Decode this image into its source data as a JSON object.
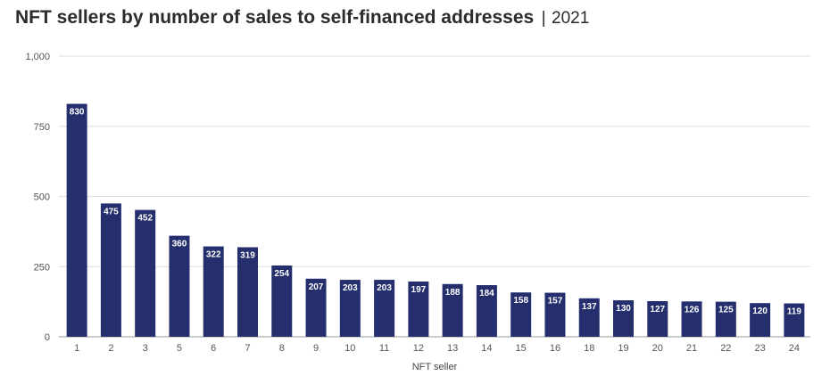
{
  "header": {
    "title": "NFT sellers by number of sales to self-financed addresses",
    "separator": "|",
    "year": "2021"
  },
  "chart_data": {
    "type": "bar",
    "title": "NFT sellers by number of sales to self-financed addresses",
    "subtitle": "2021",
    "xlabel": "NFT seller",
    "ylabel": "",
    "categories": [
      "1",
      "2",
      "3",
      "5",
      "6",
      "7",
      "8",
      "9",
      "10",
      "11",
      "12",
      "13",
      "14",
      "15",
      "16",
      "18",
      "19",
      "20",
      "21",
      "22",
      "23",
      "24"
    ],
    "values": [
      830,
      475,
      452,
      360,
      322,
      319,
      254,
      207,
      203,
      203,
      197,
      188,
      184,
      158,
      157,
      137,
      130,
      127,
      126,
      125,
      120,
      119
    ],
    "ylim": [
      0,
      1000
    ],
    "yticks": [
      0,
      250,
      500,
      750,
      1000
    ],
    "ytick_labels": [
      "0",
      "250",
      "500",
      "750",
      "1,000"
    ],
    "grid": true,
    "bar_color": "#262f6e",
    "grid_color": "#dddddd"
  }
}
